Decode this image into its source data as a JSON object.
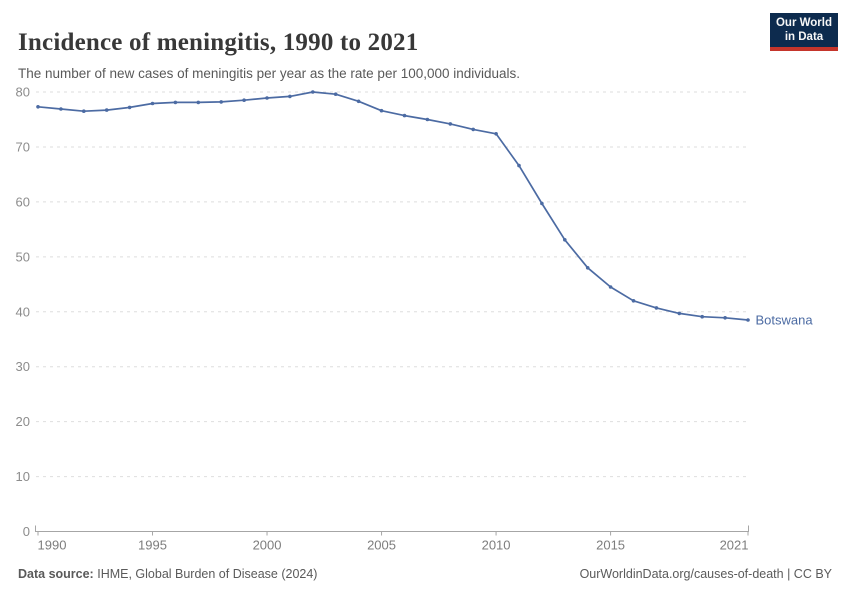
{
  "header": {
    "title": "Incidence of meningitis, 1990 to 2021",
    "subtitle": "The number of new cases of meningitis per year as the rate per 100,000 individuals."
  },
  "logo": {
    "line1": "Our World",
    "line2": "in Data",
    "bg_color": "#0D2B4E",
    "accent_color": "#C5352B"
  },
  "chart_data": {
    "type": "line",
    "title": "Incidence of meningitis, 1990 to 2021",
    "xlabel": "",
    "ylabel": "",
    "xlim": [
      1990,
      2021
    ],
    "ylim": [
      0,
      80
    ],
    "grid": "horizontal-dashed",
    "legend_position": "end-of-line-label",
    "x": [
      1990,
      1991,
      1992,
      1993,
      1994,
      1995,
      1996,
      1997,
      1998,
      1999,
      2000,
      2001,
      2002,
      2003,
      2004,
      2005,
      2006,
      2007,
      2008,
      2009,
      2010,
      2011,
      2012,
      2013,
      2014,
      2015,
      2016,
      2017,
      2018,
      2019,
      2020,
      2021
    ],
    "series": [
      {
        "name": "Botswana",
        "color": "#4C6BA3",
        "values": [
          77.3,
          76.9,
          76.5,
          76.7,
          77.2,
          77.9,
          78.1,
          78.1,
          78.2,
          78.5,
          78.9,
          79.2,
          80.0,
          79.6,
          78.3,
          76.6,
          75.7,
          75.0,
          74.2,
          73.2,
          72.4,
          66.6,
          59.7,
          53.1,
          48.0,
          44.5,
          42.0,
          40.7,
          39.7,
          39.1,
          38.9,
          38.5
        ]
      }
    ],
    "xticks": [
      1990,
      1995,
      2000,
      2005,
      2010,
      2015,
      2021
    ],
    "yticks": [
      0,
      10,
      20,
      30,
      40,
      50,
      60,
      70,
      80
    ]
  },
  "footer": {
    "datasource_label": "Data source:",
    "datasource_value": "IHME, Global Burden of Disease (2024)",
    "credit": "OurWorldinData.org/causes-of-death | CC BY"
  }
}
